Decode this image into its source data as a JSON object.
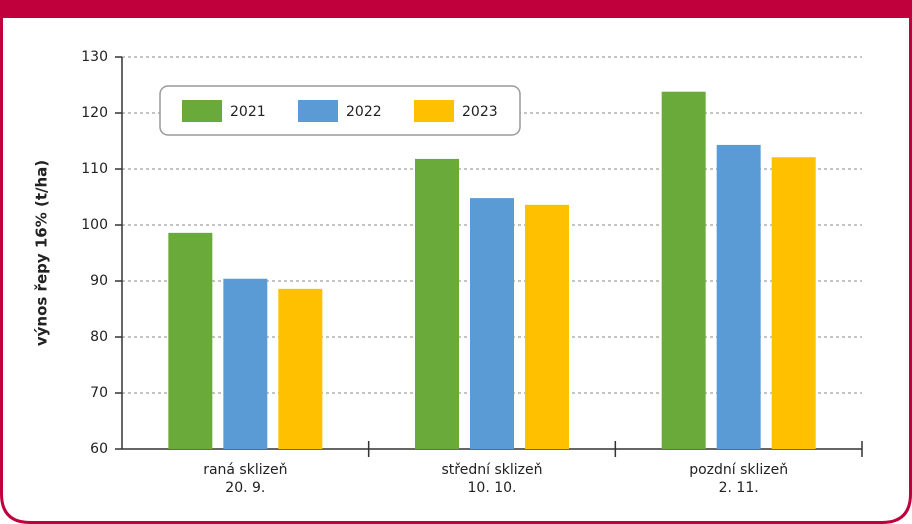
{
  "chart_data": {
    "type": "bar",
    "ylabel": "výnos řepy 16%  (t/ha)",
    "categories": [
      [
        "raná sklizeň",
        "20. 9."
      ],
      [
        "střední sklizeň",
        "10. 10."
      ],
      [
        "pozdní sklizeň",
        "2. 11."
      ]
    ],
    "series": [
      {
        "name": "2021",
        "color": "#6aaa3a",
        "values": [
          98.6,
          111.8,
          123.8
        ]
      },
      {
        "name": "2022",
        "color": "#5b9bd5",
        "values": [
          90.4,
          104.8,
          114.3
        ]
      },
      {
        "name": "2023",
        "color": "#ffc000",
        "values": [
          88.6,
          103.6,
          112.1
        ]
      }
    ],
    "ylim": [
      60,
      130
    ],
    "yticks": [
      60,
      70,
      80,
      90,
      100,
      110,
      120,
      130
    ],
    "grid": true,
    "legend": "top-left"
  }
}
